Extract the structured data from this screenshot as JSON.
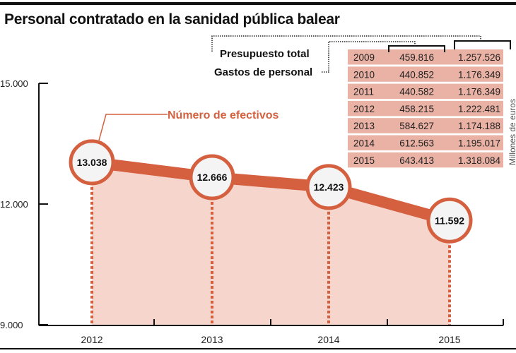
{
  "title": "Personal contratado en la sanidad pública balear",
  "chart_data": {
    "type": "line",
    "title": "Personal contratado en la sanidad pública balear",
    "series": [
      {
        "name": "Número de efectivos",
        "values": [
          13038,
          12666,
          12423,
          11592
        ],
        "labels": [
          "13.038",
          "12.666",
          "12.423",
          "11.592"
        ]
      }
    ],
    "categories": [
      "2012",
      "2013",
      "2014",
      "2015"
    ],
    "ylim": [
      9000,
      15000
    ],
    "yticks": [
      "9.000",
      "12.000",
      "15.000"
    ],
    "colors": {
      "line": "#d5603f",
      "fill": "#f6d6cc",
      "circle_fill": "#f4f4f4"
    },
    "table": {
      "legend": [
        "Presupuesto total",
        "Gastos de personal"
      ],
      "unit": "Millones de euros",
      "rows": [
        [
          "2009",
          "459.816",
          "1.257.526"
        ],
        [
          "2010",
          "440.852",
          "1.176.349"
        ],
        [
          "2011",
          "440.582",
          "1.176.349"
        ],
        [
          "2012",
          "458.215",
          "1.222.481"
        ],
        [
          "2013",
          "584.627",
          "1.174.188"
        ],
        [
          "2014",
          "612.563",
          "1.195.017"
        ],
        [
          "2015",
          "643.413",
          "1.318.084"
        ]
      ],
      "row_color": "#e9b2a4"
    }
  }
}
